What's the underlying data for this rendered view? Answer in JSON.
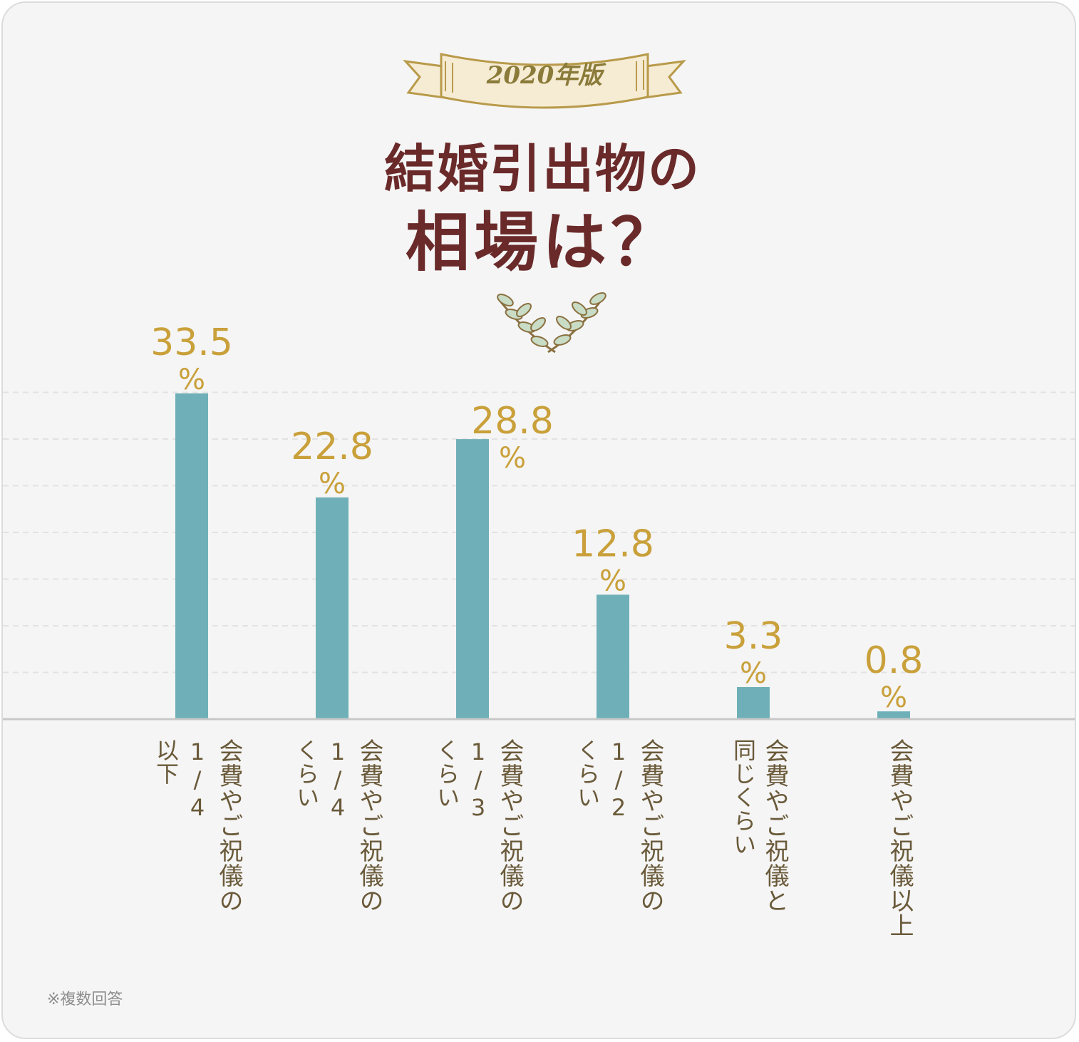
{
  "badge": "2020年版",
  "title": {
    "line1": "結婚引出物の",
    "line2": "相場は？"
  },
  "footnote": "※複数回答",
  "colors": {
    "bar": "#6fb0b8",
    "value_label": "#c9a03a",
    "title": "#6a2a2a",
    "category_label": "#6a5a3a",
    "ribbon_stroke": "#b89a4a",
    "ribbon_fill": "#f6ecd4"
  },
  "icons": {
    "ribbon": "banner-ribbon-icon",
    "wreath": "laurel-wreath-icon"
  },
  "chart_data": {
    "type": "bar",
    "title": "結婚引出物の相場は？",
    "xlabel": "",
    "ylabel": "",
    "unit": "%",
    "ylim": [
      0,
      35
    ],
    "grid": true,
    "categories": [
      [
        "会費やご祝儀の",
        "1/4",
        "以下"
      ],
      [
        "会費やご祝儀の",
        "1/4",
        "くらい"
      ],
      [
        "会費やご祝儀の",
        "1/3",
        "くらい"
      ],
      [
        "会費やご祝儀の",
        "1/2",
        "くらい"
      ],
      [
        "会費やご祝儀と",
        "同じくらい"
      ],
      [
        "会費やご祝儀以上"
      ]
    ],
    "values": [
      33.5,
      22.8,
      28.8,
      12.8,
      3.3,
      0.8
    ],
    "value_labels": [
      "33.5",
      "22.8",
      "28.8",
      "12.8",
      "3.3",
      "0.8"
    ]
  }
}
